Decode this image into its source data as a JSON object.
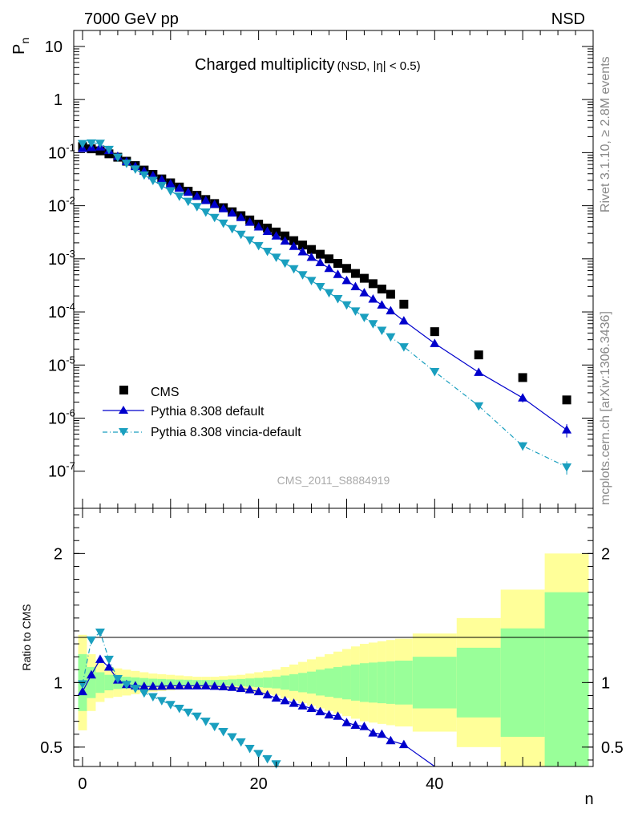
{
  "header": {
    "energy_label": "7000 GeV pp",
    "process_label": "NSD",
    "title_main": "Charged multiplicity",
    "title_sub": "(NSD, |η| < 0.5)",
    "analysis_id": "CMS_2011_S8884919",
    "side_rivet": "Rivet 3.1.10, ≥ 2.8M events",
    "side_mcplots": "mcplots.cern.ch [arXiv:1306.3436]"
  },
  "chart_data": [
    {
      "type": "scatter",
      "panel": "main",
      "ylabel": "P_n",
      "y_scale": "log",
      "xlim": [
        -1,
        58
      ],
      "ylim": [
        2e-08,
        20
      ],
      "y_ticks": [
        {
          "value": 10,
          "label": "10"
        },
        {
          "value": 1,
          "label": "1"
        },
        {
          "value": 0.1,
          "label": "10",
          "exp": "-1"
        },
        {
          "value": 0.01,
          "label": "10",
          "exp": "-2"
        },
        {
          "value": 0.001,
          "label": "10",
          "exp": "-3"
        },
        {
          "value": 0.0001,
          "label": "10",
          "exp": "-4"
        },
        {
          "value": 1e-05,
          "label": "10",
          "exp": "-5"
        },
        {
          "value": 1e-06,
          "label": "10",
          "exp": "-6"
        },
        {
          "value": 1e-07,
          "label": "10",
          "exp": "-7"
        }
      ],
      "legend_position": "bottom-left",
      "series": [
        {
          "name": "CMS",
          "style": "square",
          "color": "#000000",
          "x": [
            0,
            1,
            2,
            3,
            4,
            5,
            6,
            7,
            8,
            9,
            10,
            11,
            12,
            13,
            14,
            15,
            16,
            17,
            18,
            19,
            20,
            21,
            22,
            23,
            24,
            25,
            26,
            27,
            28,
            29,
            30,
            31,
            32,
            33,
            34,
            35,
            36.5,
            40,
            45,
            50,
            55
          ],
          "y": [
            0.13,
            0.118,
            0.108,
            0.095,
            0.082,
            0.069,
            0.057,
            0.047,
            0.039,
            0.032,
            0.027,
            0.0225,
            0.0188,
            0.0157,
            0.0131,
            0.011,
            0.0092,
            0.0077,
            0.0065,
            0.0054,
            0.0045,
            0.0038,
            0.0032,
            0.0027,
            0.0022,
            0.00182,
            0.0015,
            0.00122,
            0.001,
            0.00082,
            0.00066,
            0.00053,
            0.00043,
            0.00034,
            0.00027,
            0.000215,
            0.00014,
            4.25e-05,
            1.55e-05,
            5.8e-06,
            2.2e-06
          ]
        },
        {
          "name": "Pythia 8.308 default",
          "style": "triangle-up",
          "color": "#0000cc",
          "x": [
            0,
            1,
            2,
            3,
            4,
            5,
            6,
            7,
            8,
            9,
            10,
            11,
            12,
            13,
            14,
            15,
            16,
            17,
            18,
            19,
            20,
            21,
            22,
            23,
            24,
            25,
            26,
            27,
            28,
            29,
            30,
            31,
            32,
            33,
            34,
            35,
            36.5,
            40,
            45,
            50,
            55
          ],
          "y": [
            0.12,
            0.125,
            0.128,
            0.11,
            0.085,
            0.068,
            0.055,
            0.045,
            0.037,
            0.031,
            0.026,
            0.0215,
            0.018,
            0.0151,
            0.0126,
            0.0106,
            0.0088,
            0.0073,
            0.006,
            0.0049,
            0.004,
            0.0033,
            0.0027,
            0.00216,
            0.00172,
            0.00136,
            0.00107,
            0.00085,
            0.00066,
            0.00051,
            0.00039,
            0.0003,
            0.00023,
            0.000175,
            0.000135,
            0.000105,
            6.8e-05,
            2.55e-05,
            7.3e-06,
            2.4e-06,
            6e-07
          ]
        },
        {
          "name": "Pythia 8.308 vincia-default",
          "style": "triangle-down",
          "color": "#1a9fbf",
          "x": [
            0,
            1,
            2,
            3,
            4,
            5,
            6,
            7,
            8,
            9,
            10,
            11,
            12,
            13,
            14,
            15,
            16,
            17,
            18,
            19,
            20,
            21,
            22,
            23,
            24,
            25,
            26,
            27,
            28,
            29,
            30,
            31,
            32,
            33,
            34,
            35,
            36.5,
            40,
            45,
            50,
            55
          ],
          "y": [
            0.148,
            0.152,
            0.15,
            0.115,
            0.082,
            0.063,
            0.049,
            0.038,
            0.03,
            0.024,
            0.019,
            0.0151,
            0.0121,
            0.0096,
            0.0076,
            0.006,
            0.0047,
            0.0037,
            0.0029,
            0.00226,
            0.00177,
            0.00138,
            0.00107,
            0.00083,
            0.00065,
            0.0005,
            0.00039,
            0.0003,
            0.00023,
            0.000178,
            0.000136,
            0.000104,
            7.9e-05,
            6e-05,
            4.5e-05,
            3.4e-05,
            2.2e-05,
            7.5e-06,
            1.7e-06,
            3e-07,
            1.2e-07
          ]
        }
      ]
    },
    {
      "type": "line",
      "panel": "ratio",
      "ylabel": "Ratio to CMS",
      "xlabel": "n",
      "ylim": [
        0.35,
        2.35
      ],
      "x_ticks": [
        0,
        20,
        40
      ],
      "y_ticks": [
        0.5,
        1,
        2
      ],
      "bands": {
        "bin_edges": [
          -0.5,
          0.5,
          1.5,
          2.5,
          3.5,
          4.5,
          5.5,
          6.5,
          7.5,
          8.5,
          9.5,
          10.5,
          11.5,
          12.5,
          13.5,
          14.5,
          15.5,
          16.5,
          17.5,
          18.5,
          19.5,
          20.5,
          21.5,
          22.5,
          23.5,
          24.5,
          25.5,
          26.5,
          27.5,
          28.5,
          29.5,
          30.5,
          31.5,
          32.5,
          33.5,
          34.5,
          35.5,
          37.5,
          42.5,
          47.5,
          52.5,
          57.5
        ],
        "outer_half_width": [
          0.37,
          0.22,
          0.15,
          0.12,
          0.11,
          0.1,
          0.09,
          0.08,
          0.07,
          0.065,
          0.06,
          0.055,
          0.05,
          0.045,
          0.045,
          0.045,
          0.05,
          0.055,
          0.06,
          0.07,
          0.08,
          0.09,
          0.1,
          0.12,
          0.14,
          0.16,
          0.18,
          0.2,
          0.22,
          0.24,
          0.26,
          0.28,
          0.3,
          0.31,
          0.32,
          0.33,
          0.34,
          0.38,
          0.5,
          0.72,
          1.0
        ],
        "inner_half_width": [
          0.22,
          0.12,
          0.08,
          0.06,
          0.05,
          0.045,
          0.04,
          0.035,
          0.03,
          0.028,
          0.025,
          0.023,
          0.022,
          0.02,
          0.02,
          0.02,
          0.022,
          0.025,
          0.028,
          0.032,
          0.036,
          0.04,
          0.045,
          0.055,
          0.065,
          0.075,
          0.085,
          0.1,
          0.11,
          0.12,
          0.13,
          0.14,
          0.15,
          0.155,
          0.16,
          0.165,
          0.17,
          0.2,
          0.27,
          0.42,
          0.7
        ],
        "outer_color": "#ffff99",
        "inner_color": "#99ff99"
      },
      "series": [
        {
          "name": "Pythia 8.308 default",
          "style": "triangle-up",
          "color": "#0000cc",
          "x": [
            0,
            1,
            2,
            3,
            4,
            5,
            6,
            7,
            8,
            9,
            10,
            11,
            12,
            13,
            14,
            15,
            16,
            17,
            18,
            19,
            20,
            21,
            22,
            23,
            24,
            25,
            26,
            27,
            28,
            29,
            30,
            31,
            32,
            33,
            34,
            35,
            36.5,
            40
          ],
          "y": [
            0.93,
            1.06,
            1.18,
            1.12,
            1.02,
            0.985,
            0.975,
            0.97,
            0.97,
            0.972,
            0.975,
            0.975,
            0.975,
            0.975,
            0.975,
            0.972,
            0.968,
            0.963,
            0.955,
            0.945,
            0.93,
            0.905,
            0.88,
            0.86,
            0.84,
            0.82,
            0.8,
            0.775,
            0.75,
            0.74,
            0.69,
            0.67,
            0.66,
            0.61,
            0.6,
            0.55,
            0.52,
            0.35
          ]
        },
        {
          "name": "Pythia 8.308 vincia-default",
          "style": "triangle-down",
          "color": "#1a9fbf",
          "x": [
            0,
            1,
            2,
            3,
            4,
            5,
            6,
            7,
            8,
            9,
            10,
            11,
            12,
            13,
            14,
            15,
            16,
            17,
            18,
            19,
            20,
            21,
            22,
            23,
            24
          ],
          "y": [
            0.99,
            1.33,
            1.39,
            1.18,
            1.03,
            0.985,
            0.955,
            0.92,
            0.89,
            0.86,
            0.83,
            0.8,
            0.77,
            0.74,
            0.7,
            0.66,
            0.62,
            0.58,
            0.54,
            0.49,
            0.45,
            0.41,
            0.37,
            0.33,
            0.3
          ]
        }
      ]
    }
  ]
}
